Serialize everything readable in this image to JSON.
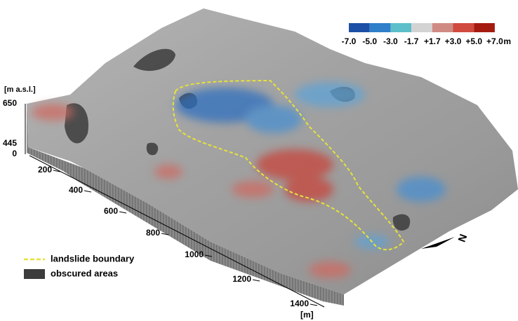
{
  "color_scale": {
    "colors": [
      "#1c4fa6",
      "#2f7fca",
      "#5cbfc9",
      "#d3d3d3",
      "#d08a84",
      "#d04a3e",
      "#a51b10"
    ],
    "labels": [
      "-7.0",
      "-5.0",
      "-3.0",
      "-1.7",
      "+1.7",
      "+3.0",
      "+5.0",
      "+7.0"
    ],
    "unit": "m"
  },
  "vertical_axis": {
    "label": "[m a.s.l.]",
    "ticks": [
      650,
      445,
      0
    ]
  },
  "horizontal_axis": {
    "ticks": [
      200,
      400,
      600,
      800,
      1000,
      1200,
      1400
    ],
    "unit": "[m]"
  },
  "legend": [
    {
      "label": "landslide boundary"
    },
    {
      "label": "obscured areas"
    }
  ],
  "north": "N"
}
